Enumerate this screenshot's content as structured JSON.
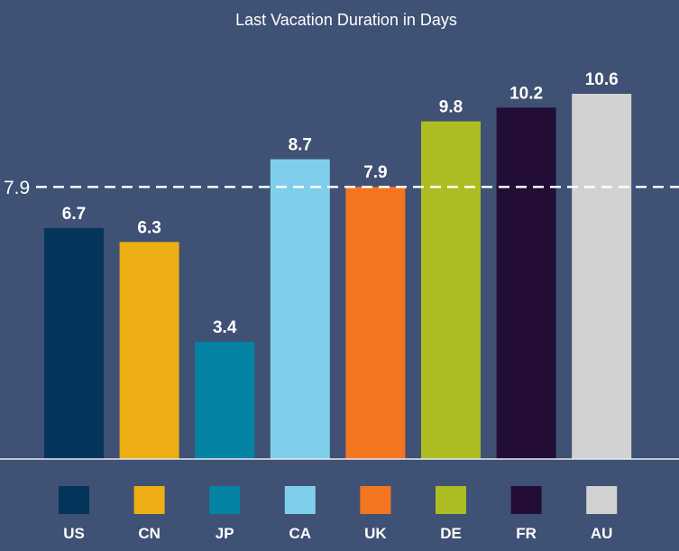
{
  "chart_data": {
    "type": "bar",
    "title": "Last Vacation Duration in Days",
    "xlabel": "",
    "ylabel": "",
    "categories": [
      "US",
      "CN",
      "JP",
      "CA",
      "UK",
      "DE",
      "FR",
      "AU"
    ],
    "values": [
      6.7,
      6.3,
      3.4,
      8.7,
      7.9,
      9.8,
      10.2,
      10.6
    ],
    "colors": [
      "#04345a",
      "#ecae12",
      "#0483a5",
      "#7fcfec",
      "#f47520",
      "#adbc22",
      "#230d37",
      "#d2d2d2"
    ],
    "ylim": [
      0,
      10.6
    ],
    "grid": false,
    "legend": "bottom",
    "reference_line": {
      "value": 7.9,
      "label": "7.9",
      "style": "dashed",
      "color": "#ffffff"
    }
  }
}
